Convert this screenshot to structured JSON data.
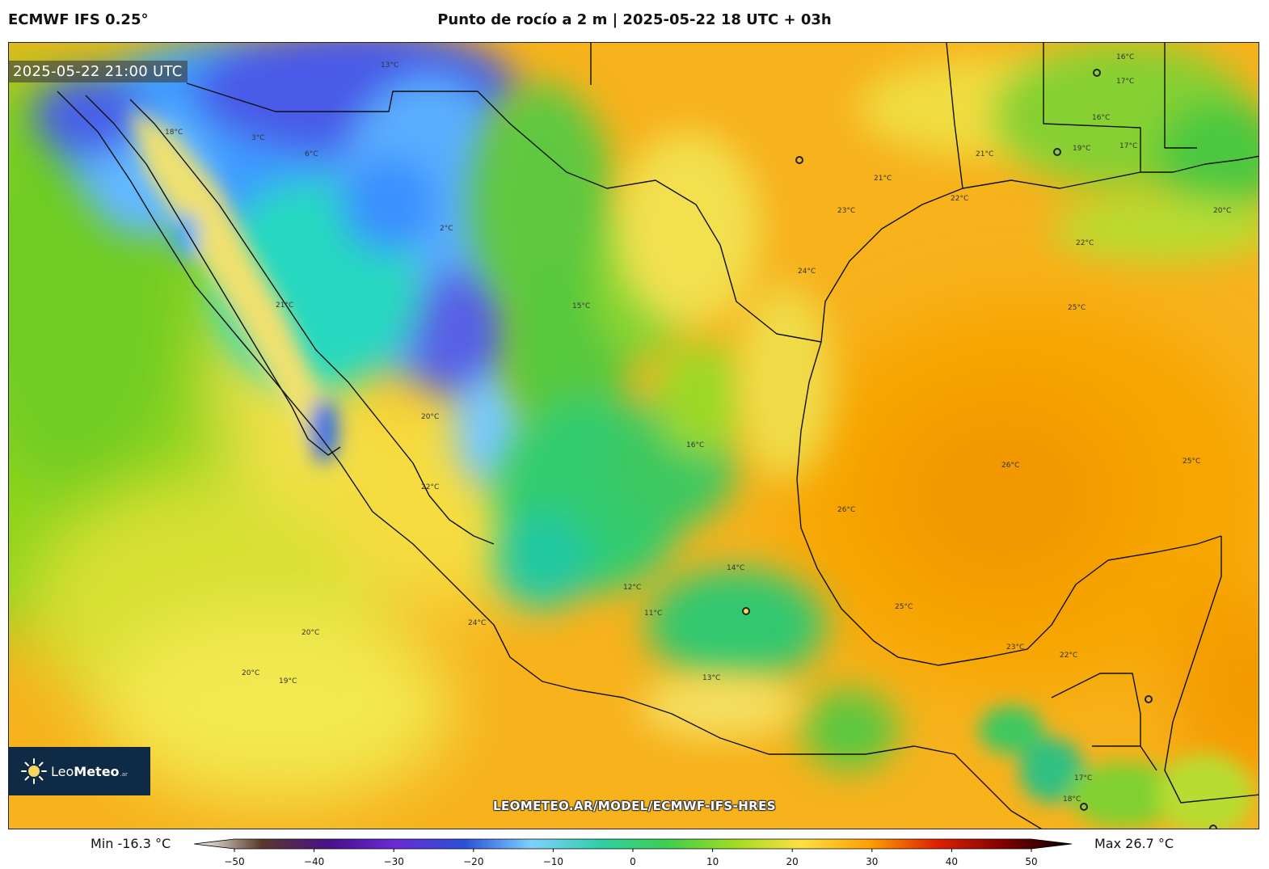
{
  "header": {
    "model": "ECMWF IFS 0.25°",
    "title": "Punto de rocío a 2 m | 2025-05-22 18 UTC + 03h"
  },
  "valid_time": "2025-05-22 21:00 UTC",
  "logo": {
    "name": "LeoMeteo",
    "part1": "Leo",
    "part2": "Meteo",
    "suffix": ".ar",
    "icon": "sun-icon"
  },
  "watermark": "LEOMETEO.AR/MODEL/ECMWF-IFS-HRES",
  "stats": {
    "min": "Min -16.3 °C",
    "max": "Max 26.7 °C"
  },
  "colorbar": {
    "ticks": [
      "−50",
      "−40",
      "−30",
      "−20",
      "−10",
      "0",
      "10",
      "20",
      "30",
      "40",
      "50"
    ],
    "range": [
      -50,
      50
    ],
    "colors": [
      "#ffffff",
      "#5a3a2a",
      "#4a0f8a",
      "#6a2ad8",
      "#2a50d8",
      "#7fd0ff",
      "#2fd0a8",
      "#3ccf50",
      "#a0dc20",
      "#ffe040",
      "#ffa000",
      "#e02000",
      "#800000",
      "#000000"
    ]
  },
  "isotherm_labels": [
    "18°C",
    "21°C",
    "22°C",
    "20°C",
    "24°C",
    "19°C",
    "20°C",
    "20°C",
    "13°C",
    "2°C",
    "3°C",
    "6°C",
    "15°C",
    "16°C",
    "12°C",
    "11°C",
    "14°C",
    "13°C",
    "23°C",
    "24°C",
    "22°C",
    "25°C",
    "26°C",
    "26°C",
    "25°C",
    "21°C",
    "17°C",
    "16°C",
    "17°C",
    "16°C",
    "19°C",
    "21°C",
    "22°C",
    "20°C",
    "25°C",
    "23°C",
    "22°C",
    "18°C",
    "17°C"
  ]
}
